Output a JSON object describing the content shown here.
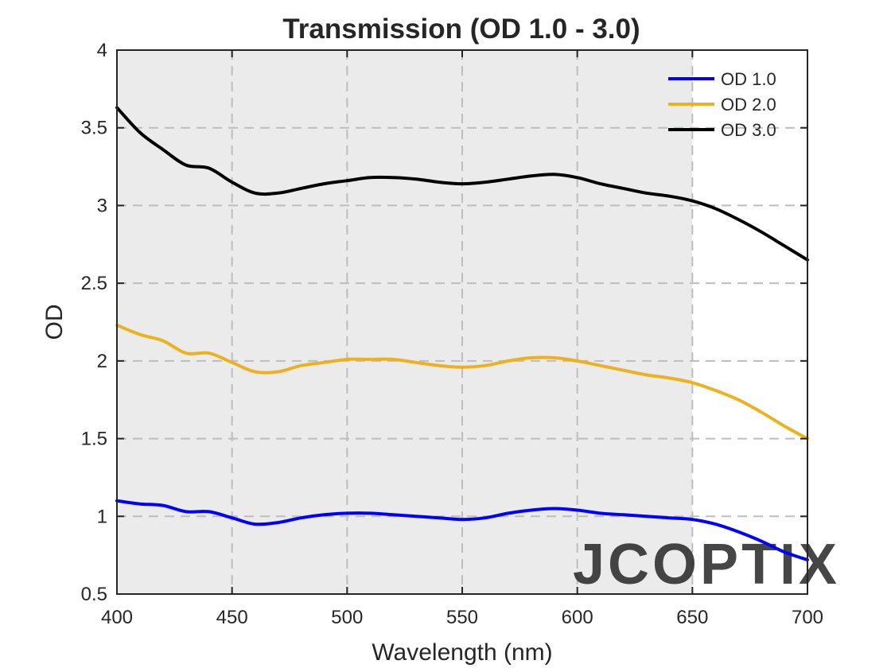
{
  "chart_data": {
    "type": "line",
    "title": "Transmission (OD 1.0 - 3.0)",
    "xlabel": "Wavelength (nm)",
    "ylabel": "OD",
    "xlim": [
      400,
      700
    ],
    "ylim": [
      0.5,
      4
    ],
    "xticks": [
      "400",
      "450",
      "500",
      "550",
      "600",
      "650",
      "700"
    ],
    "yticks": [
      "0.5",
      "1",
      "1.5",
      "2",
      "2.5",
      "3",
      "3.5",
      "4"
    ],
    "xtick_values": [
      400,
      450,
      500,
      550,
      600,
      650,
      700
    ],
    "ytick_values": [
      0.5,
      1,
      1.5,
      2,
      2.5,
      3,
      3.5,
      4
    ],
    "grid": true,
    "legend_position": "top-right",
    "shaded_region": [
      400,
      650
    ],
    "x": [
      400,
      410,
      420,
      430,
      440,
      450,
      460,
      470,
      480,
      490,
      500,
      510,
      520,
      530,
      540,
      550,
      560,
      570,
      580,
      590,
      600,
      610,
      620,
      630,
      640,
      650,
      660,
      670,
      680,
      690,
      700
    ],
    "series": [
      {
        "name": "OD 1.0",
        "color": "#0000ff",
        "values": [
          1.1,
          1.08,
          1.07,
          1.03,
          1.03,
          0.99,
          0.95,
          0.96,
          0.99,
          1.01,
          1.02,
          1.02,
          1.01,
          1.0,
          0.99,
          0.98,
          0.99,
          1.02,
          1.04,
          1.05,
          1.04,
          1.02,
          1.01,
          1.0,
          0.99,
          0.98,
          0.95,
          0.9,
          0.84,
          0.77,
          0.72
        ]
      },
      {
        "name": "OD 2.0",
        "color": "#edb120",
        "values": [
          2.23,
          2.17,
          2.13,
          2.05,
          2.05,
          1.99,
          1.93,
          1.93,
          1.97,
          1.99,
          2.01,
          2.01,
          2.01,
          1.99,
          1.97,
          1.96,
          1.97,
          2.0,
          2.02,
          2.02,
          2.0,
          1.97,
          1.94,
          1.91,
          1.89,
          1.86,
          1.81,
          1.75,
          1.67,
          1.58,
          1.5
        ]
      },
      {
        "name": "OD 3.0",
        "color": "#000000",
        "values": [
          3.63,
          3.47,
          3.36,
          3.26,
          3.24,
          3.15,
          3.08,
          3.08,
          3.11,
          3.14,
          3.16,
          3.18,
          3.18,
          3.17,
          3.15,
          3.14,
          3.15,
          3.17,
          3.19,
          3.2,
          3.18,
          3.14,
          3.11,
          3.08,
          3.06,
          3.03,
          2.98,
          2.91,
          2.83,
          2.74,
          2.65
        ]
      }
    ]
  },
  "watermark": {
    "text": "JCOPTIX",
    "color": "#c8c8c8",
    "accent_color": "#f5cfa6"
  },
  "colors": {
    "plot_background": "#ffffff",
    "shaded_background": "#ebebeb",
    "axis": "#262626",
    "grid": "#bdbdbd"
  }
}
